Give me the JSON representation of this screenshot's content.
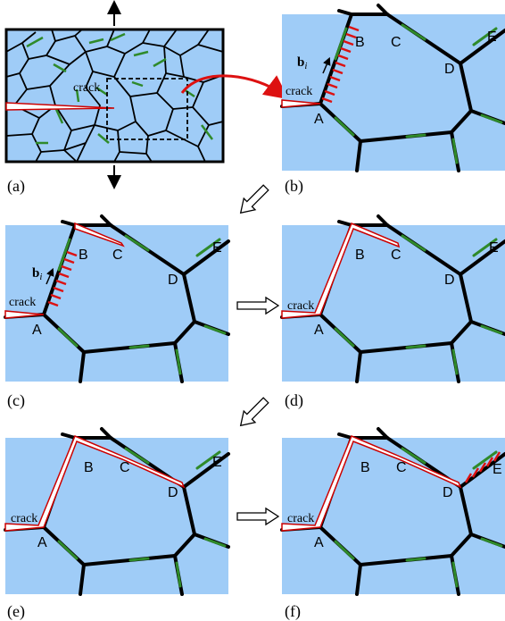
{
  "panels": {
    "a": {
      "label": "(a)",
      "crack": "crack"
    },
    "b": {
      "label": "(b)",
      "crack": "crack",
      "burgers": "b",
      "burgers_sub": "i"
    },
    "c": {
      "label": "(c)",
      "crack": "crack",
      "burgers": "b",
      "burgers_sub": "i"
    },
    "d": {
      "label": "(d)",
      "crack": "crack"
    },
    "e": {
      "label": "(e)",
      "crack": "crack"
    },
    "f": {
      "label": "(f)",
      "crack": "crack"
    }
  },
  "nodes": {
    "A": "A",
    "B": "B",
    "C": "C",
    "D": "D",
    "E": "E"
  },
  "colors": {
    "grain": "#9fccf7",
    "boundary": "#000000",
    "segment": "#2f8a2a",
    "crack": "#cc0000",
    "arrow_red": "#dd1111"
  }
}
